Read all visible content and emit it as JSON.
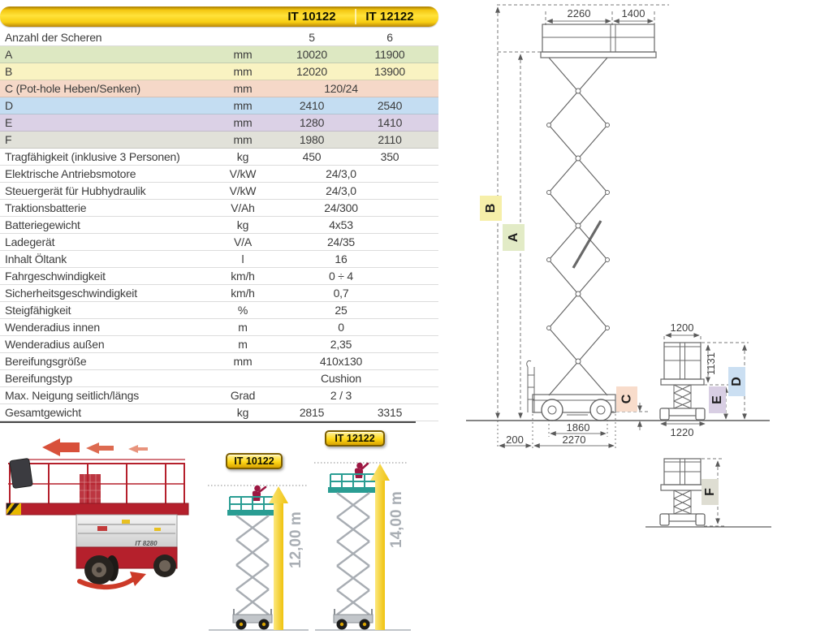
{
  "header": {
    "model1": "IT 10122",
    "model2": "IT 12122"
  },
  "table": {
    "rows": [
      {
        "label": "Anzahl der Scheren",
        "unit": "",
        "v1": "5",
        "v2": "6",
        "bg": "white"
      },
      {
        "label": "A",
        "unit": "mm",
        "v1": "10020",
        "v2": "11900",
        "bg": "green"
      },
      {
        "label": "B",
        "unit": "mm",
        "v1": "12020",
        "v2": "13900",
        "bg": "yellow"
      },
      {
        "label": "C (Pot-hole Heben/Senken)",
        "unit": "mm",
        "span": "120/24",
        "bg": "pink"
      },
      {
        "label": "D",
        "unit": "mm",
        "v1": "2410",
        "v2": "2540",
        "bg": "blue"
      },
      {
        "label": "E",
        "unit": "mm",
        "v1": "1280",
        "v2": "1410",
        "bg": "purple"
      },
      {
        "label": "F",
        "unit": "mm",
        "v1": "1980",
        "v2": "2110",
        "bg": "gray"
      },
      {
        "label": "Tragfähigkeit (inklusive 3 Personen)",
        "unit": "kg",
        "v1": "450",
        "v2": "350",
        "bg": "white"
      },
      {
        "label": "Elektrische Antriebsmotore",
        "unit": "V/kW",
        "span": "24/3,0",
        "bg": "white"
      },
      {
        "label": "Steuergerät für Hubhydraulik",
        "unit": "V/kW",
        "span": "24/3,0",
        "bg": "white"
      },
      {
        "label": "Traktionsbatterie",
        "unit": "V/Ah",
        "span": "24/300",
        "bg": "white"
      },
      {
        "label": "Batteriegewicht",
        "unit": "kg",
        "span": "4x53",
        "bg": "white"
      },
      {
        "label": "Ladegerät",
        "unit": "V/A",
        "span": "24/35",
        "bg": "white"
      },
      {
        "label": "Inhalt Öltank",
        "unit": "l",
        "span": "16",
        "bg": "white"
      },
      {
        "label": "Fahrgeschwindigkeit",
        "unit": "km/h",
        "span": "0 ÷ 4",
        "bg": "white"
      },
      {
        "label": "Sicherheitsgeschwindigkeit",
        "unit": "km/h",
        "span": "0,7",
        "bg": "white"
      },
      {
        "label": "Steigfähigkeit",
        "unit": "%",
        "span": "25",
        "bg": "white"
      },
      {
        "label": "Wenderadius innen",
        "unit": "m",
        "span": "0",
        "bg": "white"
      },
      {
        "label": "Wenderadius außen",
        "unit": "m",
        "span": "2,35",
        "bg": "white"
      },
      {
        "label": "Bereifungsgröße",
        "unit": "mm",
        "span": "410x130",
        "bg": "white"
      },
      {
        "label": "Bereifungstyp",
        "unit": "",
        "span": "Cushion",
        "bg": "white"
      },
      {
        "label": "Max. Neigung seitlich/längs",
        "unit": "Grad",
        "span": "2 / 3",
        "bg": "white"
      },
      {
        "label": "Gesamtgewicht",
        "unit": "kg",
        "v1": "2815",
        "v2": "3315",
        "bg": "white"
      }
    ]
  },
  "diagram": {
    "platform_length": "2260",
    "extension_length": "1400",
    "wheelbase": "1860",
    "chassis_length": "2270",
    "ladder_offset": "200",
    "platform_width": "1200",
    "rail_height": "1131",
    "base_width": "1220",
    "label_a": "A",
    "label_b": "B",
    "label_c": "C",
    "label_d": "D",
    "label_e": "E",
    "label_f": "F"
  },
  "footer": {
    "badge1": "IT 10122",
    "badge2": "IT 12122",
    "height1": "12,00 m",
    "height2": "14,00 m",
    "photo_label": "IT 8280"
  },
  "colors": {
    "header_yellow": "#ffd816",
    "row_green": "#dde8c2",
    "row_yellow": "#f9f3c2",
    "row_pink": "#f5d8c8",
    "row_blue": "#c4ddf2",
    "row_purple": "#dbd1e6",
    "row_gray": "#e1e1d9",
    "platform_teal": "#2a9d93",
    "arrow_yellow": "#f2c616",
    "machine_red": "#b5202c"
  }
}
